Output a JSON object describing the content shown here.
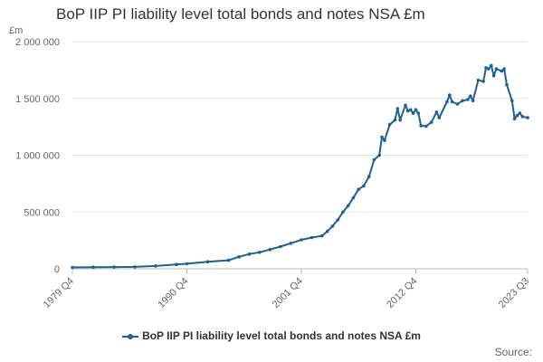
{
  "chart_data": {
    "type": "line",
    "title": "BoP IIP PI liability level total bonds and notes NSA £m",
    "unit_label": "£m",
    "xlabel": "",
    "ylabel": "",
    "ylim": [
      0,
      2000000
    ],
    "xlim": [
      "1979 Q4",
      "2023 Q3"
    ],
    "y_ticks": [
      0,
      500000,
      1000000,
      1500000,
      2000000
    ],
    "y_tick_labels": [
      "0",
      "500 000",
      "1 000 000",
      "1 500 000",
      "2 000 000"
    ],
    "x_tick_labels": [
      "1979 Q4",
      "1990 Q4",
      "2001 Q4",
      "2012 Q4",
      "2023 Q3"
    ],
    "grid": "horizontal",
    "legend_position": "bottom-center",
    "source_label": "Source:",
    "series": [
      {
        "name": "BoP IIP PI liability level total bonds and notes NSA £m",
        "color": "#206095",
        "points": [
          [
            "1979 Q4",
            12000
          ],
          [
            "1981 Q4",
            14000
          ],
          [
            "1983 Q4",
            15000
          ],
          [
            "1985 Q4",
            17000
          ],
          [
            "1987 Q4",
            25000
          ],
          [
            "1989 Q4",
            38000
          ],
          [
            "1990 Q4",
            45000
          ],
          [
            "1992 Q4",
            62000
          ],
          [
            "1994 Q4",
            75000
          ],
          [
            "1995 Q4",
            105000
          ],
          [
            "1996 Q4",
            130000
          ],
          [
            "1997 Q4",
            145000
          ],
          [
            "1998 Q4",
            170000
          ],
          [
            "1999 Q4",
            195000
          ],
          [
            "2000 Q4",
            225000
          ],
          [
            "2001 Q4",
            255000
          ],
          [
            "2002 Q4",
            275000
          ],
          [
            "2003 Q4",
            290000
          ],
          [
            "2004 Q2",
            330000
          ],
          [
            "2004 Q4",
            375000
          ],
          [
            "2005 Q2",
            430000
          ],
          [
            "2005 Q4",
            500000
          ],
          [
            "2006 Q2",
            555000
          ],
          [
            "2006 Q4",
            625000
          ],
          [
            "2007 Q2",
            700000
          ],
          [
            "2007 Q4",
            730000
          ],
          [
            "2008 Q2",
            810000
          ],
          [
            "2008 Q4",
            960000
          ],
          [
            "2009 Q2",
            1000000
          ],
          [
            "2009 Q3",
            1160000
          ],
          [
            "2009 Q4",
            1130000
          ],
          [
            "2010 Q2",
            1270000
          ],
          [
            "2010 Q4",
            1310000
          ],
          [
            "2011 Q1",
            1410000
          ],
          [
            "2011 Q2",
            1310000
          ],
          [
            "2011 Q4",
            1440000
          ],
          [
            "2012 Q1",
            1390000
          ],
          [
            "2012 Q2",
            1400000
          ],
          [
            "2012 Q3",
            1370000
          ],
          [
            "2012 Q4",
            1400000
          ],
          [
            "2013 Q1",
            1370000
          ],
          [
            "2013 Q2",
            1260000
          ],
          [
            "2013 Q4",
            1255000
          ],
          [
            "2014 Q2",
            1290000
          ],
          [
            "2014 Q4",
            1380000
          ],
          [
            "2015 Q1",
            1330000
          ],
          [
            "2015 Q4",
            1470000
          ],
          [
            "2016 Q1",
            1530000
          ],
          [
            "2016 Q2",
            1470000
          ],
          [
            "2016 Q4",
            1450000
          ],
          [
            "2017 Q2",
            1480000
          ],
          [
            "2017 Q4",
            1490000
          ],
          [
            "2018 Q1",
            1520000
          ],
          [
            "2018 Q2",
            1480000
          ],
          [
            "2018 Q4",
            1660000
          ],
          [
            "2019 Q2",
            1650000
          ],
          [
            "2019 Q3",
            1770000
          ],
          [
            "2019 Q4",
            1760000
          ],
          [
            "2020 Q1",
            1790000
          ],
          [
            "2020 Q2",
            1700000
          ],
          [
            "2020 Q3",
            1760000
          ],
          [
            "2021 Q1",
            1740000
          ],
          [
            "2021 Q2",
            1760000
          ],
          [
            "2021 Q3",
            1620000
          ],
          [
            "2022 Q1",
            1480000
          ],
          [
            "2022 Q2",
            1320000
          ],
          [
            "2022 Q3",
            1350000
          ],
          [
            "2022 Q4",
            1370000
          ],
          [
            "2023 Q1",
            1340000
          ],
          [
            "2023 Q3",
            1330000
          ]
        ]
      }
    ]
  }
}
